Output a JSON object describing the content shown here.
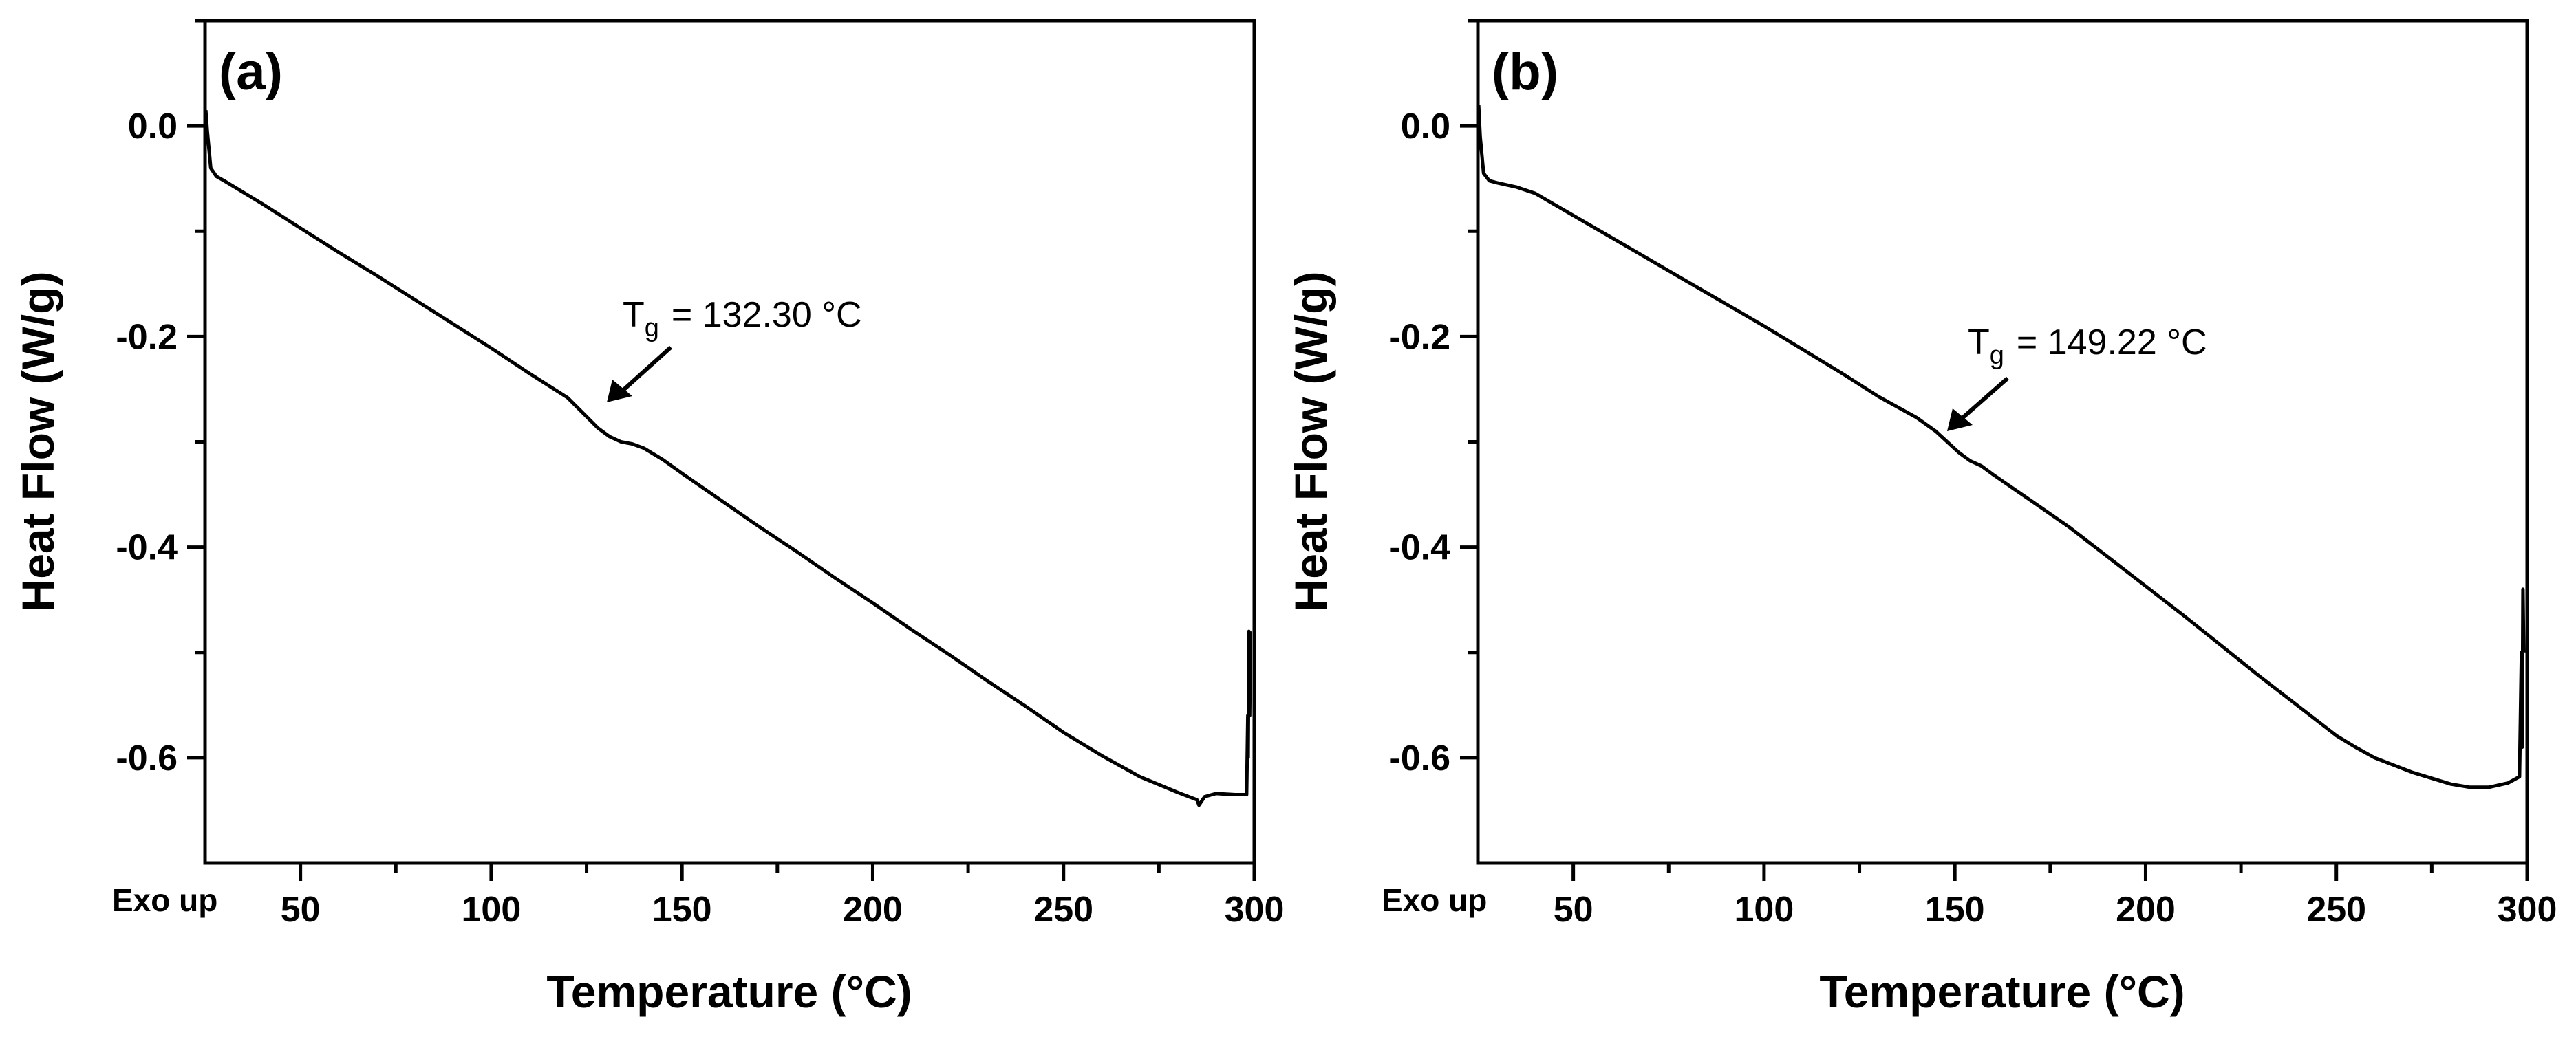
{
  "chart_data": [
    {
      "type": "line",
      "panel_label": "(a)",
      "xlabel": "Temperature (°C)",
      "ylabel": "Heat Flow (W/g)",
      "corner_label": "Exo up",
      "xlim": [
        25,
        300
      ],
      "ylim": [
        -0.7,
        0.1
      ],
      "x_ticks": [
        50,
        100,
        150,
        200,
        250,
        300
      ],
      "y_ticks": [
        0.0,
        -0.2,
        -0.4,
        -0.6
      ],
      "x_tick_labels": [
        "50",
        "100",
        "150",
        "200",
        "250",
        "300"
      ],
      "y_tick_labels": [
        "0.0",
        "-0.2",
        "-0.4",
        "-0.6"
      ],
      "grid": false,
      "annotation": {
        "prefix": "T",
        "subscript": "g",
        "text": "= 132.30 °C",
        "x": 132.3,
        "y": -0.262
      },
      "series": [
        {
          "x": [
            25.2,
            25.6,
            26.5,
            28,
            30,
            40,
            50,
            60,
            70,
            80,
            90,
            100,
            110,
            120,
            125,
            128,
            131,
            134,
            137,
            140,
            145,
            150,
            160,
            170,
            180,
            190,
            200,
            210,
            220,
            230,
            240,
            250,
            260,
            270,
            280,
            285,
            285.5,
            287,
            290,
            295,
            298,
            298.3,
            298.4,
            298.6,
            298.8,
            299
          ],
          "y": [
            0.015,
            -0.005,
            -0.04,
            -0.048,
            -0.052,
            -0.074,
            -0.097,
            -0.12,
            -0.142,
            -0.165,
            -0.188,
            -0.211,
            -0.235,
            -0.258,
            -0.276,
            -0.287,
            -0.295,
            -0.3,
            -0.302,
            -0.306,
            -0.317,
            -0.33,
            -0.355,
            -0.38,
            -0.404,
            -0.429,
            -0.453,
            -0.478,
            -0.502,
            -0.527,
            -0.551,
            -0.576,
            -0.598,
            -0.618,
            -0.633,
            -0.64,
            -0.645,
            -0.637,
            -0.634,
            -0.635,
            -0.635,
            -0.56,
            -0.6,
            -0.48,
            -0.56,
            -0.48
          ]
        }
      ]
    },
    {
      "type": "line",
      "panel_label": "(b)",
      "xlabel": "Temperature (°C)",
      "ylabel": "Heat Flow (W/g)",
      "corner_label": "Exo up",
      "xlim": [
        25,
        300
      ],
      "ylim": [
        -0.7,
        0.1
      ],
      "x_ticks": [
        50,
        100,
        150,
        200,
        250,
        300
      ],
      "y_ticks": [
        0.0,
        -0.2,
        -0.4,
        -0.6
      ],
      "x_tick_labels": [
        "50",
        "100",
        "150",
        "200",
        "250",
        "300"
      ],
      "y_tick_labels": [
        "0.0",
        "-0.2",
        "-0.4",
        "-0.6"
      ],
      "grid": false,
      "annotation": {
        "prefix": "T",
        "subscript": "g",
        "text": "= 149.22 °C",
        "x": 149.2,
        "y": -0.288
      },
      "series": [
        {
          "x": [
            25.2,
            25.6,
            26.5,
            28,
            30,
            35,
            40,
            50,
            60,
            70,
            80,
            90,
            100,
            110,
            120,
            130,
            140,
            145,
            148,
            151,
            154,
            157,
            160,
            170,
            180,
            190,
            200,
            210,
            220,
            230,
            240,
            250,
            255,
            260,
            270,
            280,
            285,
            290,
            295,
            298,
            298.5,
            298.7,
            298.9,
            299.1
          ],
          "y": [
            0.02,
            -0.01,
            -0.045,
            -0.052,
            -0.054,
            -0.058,
            -0.064,
            -0.085,
            -0.106,
            -0.127,
            -0.148,
            -0.169,
            -0.19,
            -0.212,
            -0.234,
            -0.257,
            -0.277,
            -0.29,
            -0.3,
            -0.31,
            -0.318,
            -0.323,
            -0.331,
            -0.356,
            -0.381,
            -0.409,
            -0.437,
            -0.465,
            -0.494,
            -0.523,
            -0.551,
            -0.579,
            -0.59,
            -0.6,
            -0.614,
            -0.625,
            -0.628,
            -0.628,
            -0.624,
            -0.618,
            -0.5,
            -0.59,
            -0.44,
            -0.5
          ]
        }
      ]
    }
  ]
}
